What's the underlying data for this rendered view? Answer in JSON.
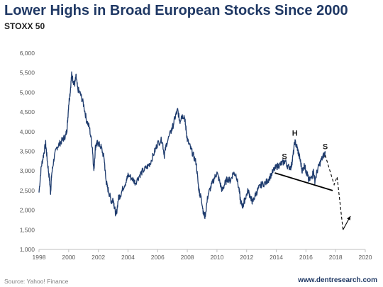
{
  "header": {
    "title": "Lower Highs in Broad European Stocks Since 2000",
    "subtitle": "STOXX 50"
  },
  "footer": {
    "source": "Source: Yahoo! Finance",
    "website": "www.dentresearch.com"
  },
  "chart_data": {
    "type": "line",
    "title": "Lower Highs in Broad European Stocks Since 2000",
    "subtitle": "STOXX 50",
    "xlabel": "",
    "ylabel": "",
    "xlim": [
      1998,
      2020
    ],
    "ylim": [
      1000,
      6000
    ],
    "x_ticks": [
      1998,
      2000,
      2002,
      2004,
      2006,
      2008,
      2010,
      2012,
      2014,
      2016,
      2018,
      2020
    ],
    "y_ticks": [
      1000,
      1500,
      2000,
      2500,
      3000,
      3500,
      4000,
      4500,
      5000,
      5500,
      6000
    ],
    "y_tick_labels": [
      "1,000",
      "1,500",
      "2,000",
      "2,500",
      "3,000",
      "3,500",
      "4,000",
      "4,500",
      "5,000",
      "5,500",
      "6,000"
    ],
    "grid": false,
    "legend": "none",
    "line_color": "#1f3c6e",
    "series": [
      {
        "x": [
          1998.0,
          1998.15,
          1998.3,
          1998.45,
          1998.55,
          1998.7,
          1998.78,
          1998.85,
          1999.0,
          1999.2,
          1999.4,
          1999.6,
          1999.8,
          1999.9,
          2000.0,
          2000.1,
          2000.2,
          2000.3,
          2000.4,
          2000.5,
          2000.6,
          2000.8,
          2001.0,
          2001.2,
          2001.4,
          2001.6,
          2001.7,
          2001.8,
          2001.9,
          2002.0,
          2002.2,
          2002.4,
          2002.5,
          2002.6,
          2002.75,
          2002.9,
          2003.0,
          2003.1,
          2003.2,
          2003.35,
          2003.5,
          2003.7,
          2003.9,
          2004.0,
          2004.3,
          2004.5,
          2004.8,
          2005.0,
          2005.3,
          2005.5,
          2005.8,
          2006.0,
          2006.3,
          2006.45,
          2006.6,
          2006.9,
          2007.0,
          2007.2,
          2007.35,
          2007.5,
          2007.6,
          2007.8,
          2007.9,
          2008.0,
          2008.2,
          2008.4,
          2008.6,
          2008.75,
          2008.85,
          2008.95,
          2009.1,
          2009.2,
          2009.4,
          2009.6,
          2009.8,
          2010.0,
          2010.2,
          2010.35,
          2010.5,
          2010.7,
          2010.9,
          2011.1,
          2011.3,
          2011.5,
          2011.6,
          2011.75,
          2011.9,
          2012.1,
          2012.3,
          2012.4,
          2012.6,
          2012.8,
          2013.0,
          2013.3,
          2013.5,
          2013.8,
          2014.0,
          2014.2,
          2014.4,
          2014.6,
          2014.8,
          2015.0,
          2015.1,
          2015.25,
          2015.4,
          2015.5,
          2015.6,
          2015.75,
          2015.9,
          2016.0,
          2016.1,
          2016.2,
          2016.4,
          2016.5,
          2016.6,
          2016.8,
          2017.0,
          2017.2,
          2017.3
        ],
        "y": [
          2450,
          3100,
          3400,
          3700,
          3300,
          2800,
          2450,
          2900,
          3300,
          3600,
          3700,
          3800,
          3900,
          4100,
          4700,
          5000,
          5450,
          5300,
          5200,
          5400,
          5100,
          4950,
          4700,
          4300,
          4100,
          3600,
          3000,
          3600,
          3700,
          3700,
          3600,
          3300,
          2800,
          2600,
          2400,
          2200,
          2300,
          2050,
          1850,
          2300,
          2400,
          2600,
          2750,
          2900,
          2800,
          2700,
          2900,
          3000,
          3100,
          3200,
          3500,
          3700,
          3800,
          3400,
          3700,
          4000,
          4100,
          4400,
          4550,
          4250,
          4400,
          4400,
          4100,
          3800,
          3600,
          3400,
          3200,
          2600,
          2400,
          2300,
          1900,
          1850,
          2400,
          2600,
          2800,
          2950,
          2700,
          2500,
          2650,
          2800,
          2750,
          2950,
          2900,
          2500,
          2200,
          2100,
          2300,
          2500,
          2300,
          2200,
          2400,
          2550,
          2650,
          2700,
          2800,
          3000,
          3100,
          3150,
          3200,
          3250,
          3100,
          3100,
          3300,
          3750,
          3600,
          3450,
          3300,
          3000,
          3150,
          3000,
          2900,
          2750,
          2850,
          3000,
          2750,
          3050,
          3250,
          3400,
          3450
        ]
      }
    ],
    "annotations": [
      {
        "text": "S",
        "x": 2014.55,
        "y": 3300
      },
      {
        "text": "H",
        "x": 2015.25,
        "y": 3900
      },
      {
        "text": "S",
        "x": 2017.3,
        "y": 3550
      }
    ],
    "neckline": {
      "x": [
        2013.9,
        2017.8
      ],
      "y": [
        2950,
        2500
      ]
    },
    "projection": {
      "x": [
        2017.3,
        2017.9,
        2018.1,
        2018.5,
        2019.0
      ],
      "y": [
        3400,
        2650,
        2850,
        1500,
        1850
      ]
    }
  }
}
